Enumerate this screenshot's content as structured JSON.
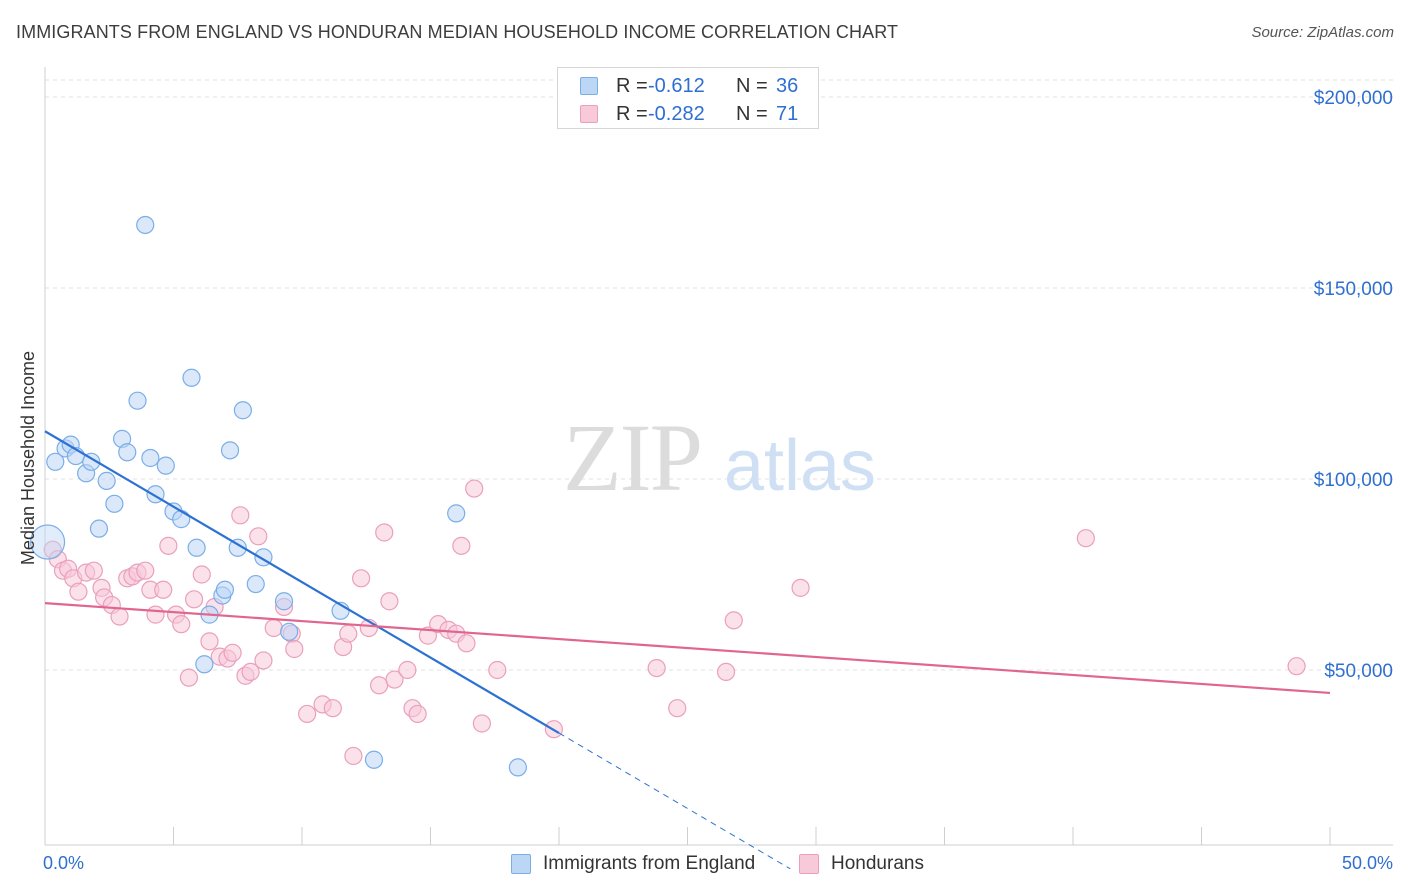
{
  "header": {
    "title": "IMMIGRANTS FROM ENGLAND VS HONDURAN MEDIAN HOUSEHOLD INCOME CORRELATION CHART",
    "source": "Source: ZipAtlas.com"
  },
  "watermark": {
    "zip": "ZIP",
    "atlas": "atlas"
  },
  "stats": [
    {
      "r_label": "R =",
      "r_value": "-0.612",
      "n_label": "N =",
      "n_value": "36"
    },
    {
      "r_label": "R =",
      "r_value": "-0.282",
      "n_label": "N =",
      "n_value": "71"
    }
  ],
  "chart_data": {
    "type": "scatter",
    "title": "IMMIGRANTS FROM ENGLAND VS HONDURAN MEDIAN HOUSEHOLD INCOME CORRELATION CHART",
    "xlabel": "",
    "ylabel": "Median Household Income",
    "xlim": [
      0,
      50
    ],
    "ylim": [
      0,
      210000
    ],
    "x_tick_labels": {
      "min": "0.0%",
      "max": "50.0%"
    },
    "y_ticks": [
      {
        "value": 50000,
        "label": "$50,000"
      },
      {
        "value": 100000,
        "label": "$100,000"
      },
      {
        "value": 150000,
        "label": "$150,000"
      },
      {
        "value": 200000,
        "label": "$200,000"
      }
    ],
    "legend": [
      "Immigrants from England",
      "Hondurans"
    ],
    "series": [
      {
        "name": "Immigrants from England",
        "color": "#7aaee8",
        "fill": "#bcd6f6",
        "line_color": "#2d72d2",
        "trend": {
          "x0": 0,
          "y0": 112500,
          "x1": 20,
          "y1": 33500,
          "dash_to_x": 29
        },
        "points": [
          {
            "x": 0.1,
            "y": 83500,
            "big": true
          },
          {
            "x": 0.4,
            "y": 104500
          },
          {
            "x": 0.8,
            "y": 108000
          },
          {
            "x": 1.0,
            "y": 109000
          },
          {
            "x": 1.2,
            "y": 106000
          },
          {
            "x": 1.6,
            "y": 101500
          },
          {
            "x": 1.8,
            "y": 104500
          },
          {
            "x": 2.1,
            "y": 87000
          },
          {
            "x": 2.4,
            "y": 99500
          },
          {
            "x": 2.7,
            "y": 93500
          },
          {
            "x": 3.0,
            "y": 110500
          },
          {
            "x": 3.2,
            "y": 107000
          },
          {
            "x": 3.6,
            "y": 120500
          },
          {
            "x": 3.9,
            "y": 166500
          },
          {
            "x": 4.1,
            "y": 105500
          },
          {
            "x": 4.3,
            "y": 96000
          },
          {
            "x": 4.7,
            "y": 103500
          },
          {
            "x": 5.0,
            "y": 91500
          },
          {
            "x": 5.3,
            "y": 89500
          },
          {
            "x": 5.7,
            "y": 126500
          },
          {
            "x": 5.9,
            "y": 82000
          },
          {
            "x": 6.2,
            "y": 51500
          },
          {
            "x": 6.4,
            "y": 64500
          },
          {
            "x": 6.9,
            "y": 69500
          },
          {
            "x": 7.0,
            "y": 71000
          },
          {
            "x": 7.2,
            "y": 107500
          },
          {
            "x": 7.5,
            "y": 82000
          },
          {
            "x": 7.7,
            "y": 118000
          },
          {
            "x": 8.2,
            "y": 72500
          },
          {
            "x": 8.5,
            "y": 79500
          },
          {
            "x": 9.3,
            "y": 68000
          },
          {
            "x": 9.5,
            "y": 60000
          },
          {
            "x": 11.5,
            "y": 65500
          },
          {
            "x": 12.8,
            "y": 26500
          },
          {
            "x": 16.0,
            "y": 91000
          },
          {
            "x": 18.4,
            "y": 24500
          }
        ]
      },
      {
        "name": "Hondurans",
        "color": "#eaa0bb",
        "fill": "#f8c9d9",
        "line_color": "#e0668f",
        "trend": {
          "x0": 0,
          "y0": 67500,
          "x1": 50,
          "y1": 44000
        },
        "points": [
          {
            "x": 0.3,
            "y": 81500
          },
          {
            "x": 0.5,
            "y": 79000
          },
          {
            "x": 0.7,
            "y": 76000
          },
          {
            "x": 0.9,
            "y": 76500
          },
          {
            "x": 1.1,
            "y": 74000
          },
          {
            "x": 1.3,
            "y": 70500
          },
          {
            "x": 1.6,
            "y": 75500
          },
          {
            "x": 1.9,
            "y": 76000
          },
          {
            "x": 2.2,
            "y": 71500
          },
          {
            "x": 2.3,
            "y": 69000
          },
          {
            "x": 2.6,
            "y": 67000
          },
          {
            "x": 2.9,
            "y": 64000
          },
          {
            "x": 3.2,
            "y": 74000
          },
          {
            "x": 3.4,
            "y": 74500
          },
          {
            "x": 3.6,
            "y": 75500
          },
          {
            "x": 3.9,
            "y": 76000
          },
          {
            "x": 4.1,
            "y": 71000
          },
          {
            "x": 4.3,
            "y": 64500
          },
          {
            "x": 4.6,
            "y": 71000
          },
          {
            "x": 4.8,
            "y": 82500
          },
          {
            "x": 5.1,
            "y": 64500
          },
          {
            "x": 5.3,
            "y": 62000
          },
          {
            "x": 5.6,
            "y": 48000
          },
          {
            "x": 5.8,
            "y": 68500
          },
          {
            "x": 6.1,
            "y": 75000
          },
          {
            "x": 6.4,
            "y": 57500
          },
          {
            "x": 6.6,
            "y": 66500
          },
          {
            "x": 6.8,
            "y": 53500
          },
          {
            "x": 7.1,
            "y": 53000
          },
          {
            "x": 7.3,
            "y": 54500
          },
          {
            "x": 7.6,
            "y": 90500
          },
          {
            "x": 7.8,
            "y": 48500
          },
          {
            "x": 8.0,
            "y": 49500
          },
          {
            "x": 8.3,
            "y": 85000
          },
          {
            "x": 8.5,
            "y": 52500
          },
          {
            "x": 8.9,
            "y": 61000
          },
          {
            "x": 9.3,
            "y": 66500
          },
          {
            "x": 9.6,
            "y": 59500
          },
          {
            "x": 9.7,
            "y": 55500
          },
          {
            "x": 10.2,
            "y": 38500
          },
          {
            "x": 10.8,
            "y": 41000
          },
          {
            "x": 11.2,
            "y": 40000
          },
          {
            "x": 11.6,
            "y": 56000
          },
          {
            "x": 11.8,
            "y": 59500
          },
          {
            "x": 12.0,
            "y": 27500
          },
          {
            "x": 12.3,
            "y": 74000
          },
          {
            "x": 12.6,
            "y": 61000
          },
          {
            "x": 13.0,
            "y": 46000
          },
          {
            "x": 13.2,
            "y": 86000
          },
          {
            "x": 13.4,
            "y": 68000
          },
          {
            "x": 13.6,
            "y": 47500
          },
          {
            "x": 14.1,
            "y": 50000
          },
          {
            "x": 14.3,
            "y": 40000
          },
          {
            "x": 14.5,
            "y": 38500
          },
          {
            "x": 14.9,
            "y": 59000
          },
          {
            "x": 15.3,
            "y": 62000
          },
          {
            "x": 15.7,
            "y": 60500
          },
          {
            "x": 16.0,
            "y": 59500
          },
          {
            "x": 16.2,
            "y": 82500
          },
          {
            "x": 16.4,
            "y": 57000
          },
          {
            "x": 16.7,
            "y": 97500
          },
          {
            "x": 17.0,
            "y": 36000
          },
          {
            "x": 17.6,
            "y": 50000
          },
          {
            "x": 19.8,
            "y": 34500
          },
          {
            "x": 23.8,
            "y": 50500
          },
          {
            "x": 24.6,
            "y": 40000
          },
          {
            "x": 26.5,
            "y": 49500
          },
          {
            "x": 26.8,
            "y": 63000
          },
          {
            "x": 29.4,
            "y": 71500
          },
          {
            "x": 40.5,
            "y": 84500
          },
          {
            "x": 48.7,
            "y": 51000
          }
        ]
      }
    ]
  }
}
